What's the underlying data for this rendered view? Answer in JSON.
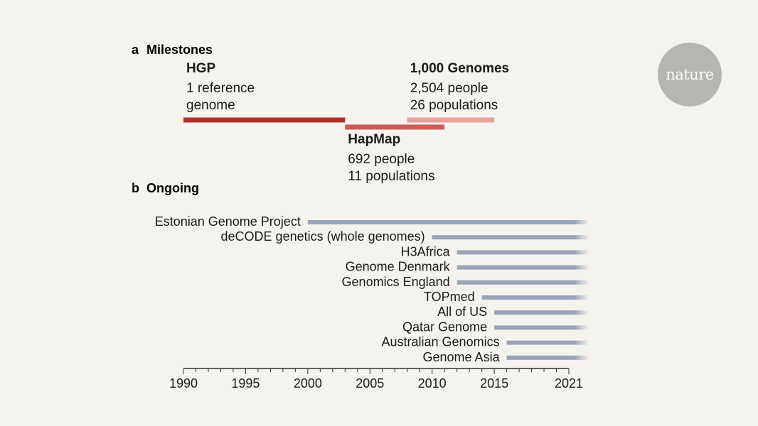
{
  "logo": {
    "text": "nature"
  },
  "chart_data": {
    "type": "gantt",
    "x_unit": "year",
    "xlim": [
      1990,
      2021
    ],
    "ticks": [
      1990,
      1995,
      2000,
      2005,
      2010,
      2015,
      2021
    ],
    "tick_labels": [
      "1990",
      "1995",
      "2000",
      "2005",
      "2010",
      "2015",
      "2021"
    ],
    "panels": {
      "milestones": {
        "letter": "a",
        "title": "Milestones",
        "projects": [
          {
            "name": "HGP",
            "lines": [
              "1 reference",
              "genome"
            ],
            "start": 1990,
            "end": 2003,
            "color": "#b3322b",
            "label_pos": "above"
          },
          {
            "name": "HapMap",
            "lines": [
              "692 people",
              "11 populations"
            ],
            "start": 2003,
            "end": 2011,
            "color": "#cc5a55",
            "label_pos": "below"
          },
          {
            "name": "1,000 Genomes",
            "lines": [
              "2,504 people",
              "26 populations"
            ],
            "start": 2008,
            "end": 2015,
            "color": "#e8a09b",
            "label_pos": "above"
          }
        ]
      },
      "ongoing": {
        "letter": "b",
        "title": "Ongoing",
        "bar_color": "#9aa4b6",
        "projects": [
          {
            "name": "Estonian Genome Project",
            "start": 2000
          },
          {
            "name": "deCODE genetics (whole genomes)",
            "start": 2010
          },
          {
            "name": "H3Africa",
            "start": 2012
          },
          {
            "name": "Genome Denmark",
            "start": 2012
          },
          {
            "name": "Genomics England",
            "start": 2012
          },
          {
            "name": "TOPmed",
            "start": 2014
          },
          {
            "name": "All of US",
            "start": 2015
          },
          {
            "name": "Qatar Genome",
            "start": 2015
          },
          {
            "name": "Australian Genomics",
            "start": 2016
          },
          {
            "name": "Genome Asia",
            "start": 2016
          }
        ]
      }
    }
  }
}
